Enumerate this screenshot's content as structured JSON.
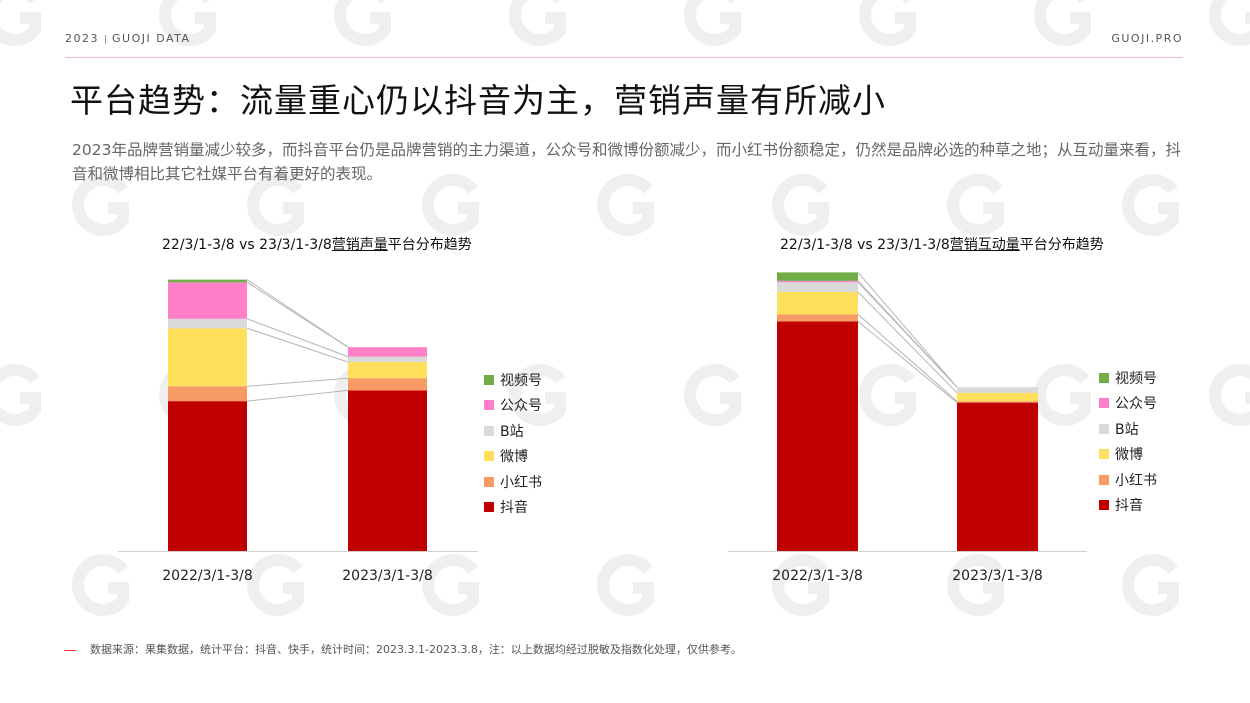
{
  "header": {
    "year": "2023",
    "brand": "GUOJI DATA",
    "site": "GUOJI.PRO"
  },
  "title": "平台趋势：流量重心仍以抖音为主，营销声量有所减小",
  "subtitle": "2023年品牌营销量减少较多，而抖音平台仍是品牌营销的主力渠道，公众号和微博份额减少，而小红书份额稳定，仍然是品牌必选的种草之地；从互动量来看，抖音和微博相比其它社媒平台有着更好的表现。",
  "footnote": "数据来源：果集数据，统计平台：抖音、快手，统计时间：2023.3.1-2023.3.8，注：以上数据均经过脱敏及指数化处理，仅供参考。",
  "colors": {
    "douyin": "#c00000",
    "xiaohongshu": "#f79a63",
    "weibo": "#ffdf5c",
    "bilibili": "#d9d9d9",
    "gongzhonghao": "#ff80c8",
    "shipinhao": "#70ad47"
  },
  "chart_data": [
    {
      "type": "bar",
      "stacked": true,
      "title_prefix": "22/3/1-3/8 vs 23/3/1-3/8",
      "title_underlined": "营销声量",
      "title_suffix": "平台分布趋势",
      "categories": [
        "2022/3/1-3/8",
        "2023/3/1-3/8"
      ],
      "ylim": [
        0,
        100
      ],
      "series": [
        {
          "name": "抖音",
          "values": [
            55.5,
            59.5
          ]
        },
        {
          "name": "小红书",
          "values": [
            5.5,
            4.5
          ]
        },
        {
          "name": "微博",
          "values": [
            21.5,
            6.0
          ]
        },
        {
          "name": "B站",
          "values": [
            3.5,
            2.0
          ]
        },
        {
          "name": "公众号",
          "values": [
            13.5,
            3.5
          ]
        },
        {
          "name": "视频号",
          "values": [
            1.0,
            0
          ]
        }
      ],
      "legend": [
        "视频号",
        "公众号",
        "B站",
        "微博",
        "小红书",
        "抖音"
      ]
    },
    {
      "type": "bar",
      "stacked": true,
      "title_prefix": "22/3/1-3/8 vs 23/3/1-3/8",
      "title_underlined": "营销互动量",
      "title_suffix": "平台分布趋势",
      "categories": [
        "2022/3/1-3/8",
        "2023/3/1-3/8"
      ],
      "ylim": [
        0,
        100
      ],
      "series": [
        {
          "name": "抖音",
          "values": [
            82.0,
            53.0
          ]
        },
        {
          "name": "小红书",
          "values": [
            2.5,
            0.5
          ]
        },
        {
          "name": "微博",
          "values": [
            8.0,
            3.0
          ]
        },
        {
          "name": "B站",
          "values": [
            3.5,
            2.0
          ]
        },
        {
          "name": "公众号",
          "values": [
            0.5,
            0
          ]
        },
        {
          "name": "视频号",
          "values": [
            3.0,
            0
          ]
        }
      ],
      "legend": [
        "视频号",
        "公众号",
        "B站",
        "微博",
        "小红书",
        "抖音"
      ]
    }
  ]
}
